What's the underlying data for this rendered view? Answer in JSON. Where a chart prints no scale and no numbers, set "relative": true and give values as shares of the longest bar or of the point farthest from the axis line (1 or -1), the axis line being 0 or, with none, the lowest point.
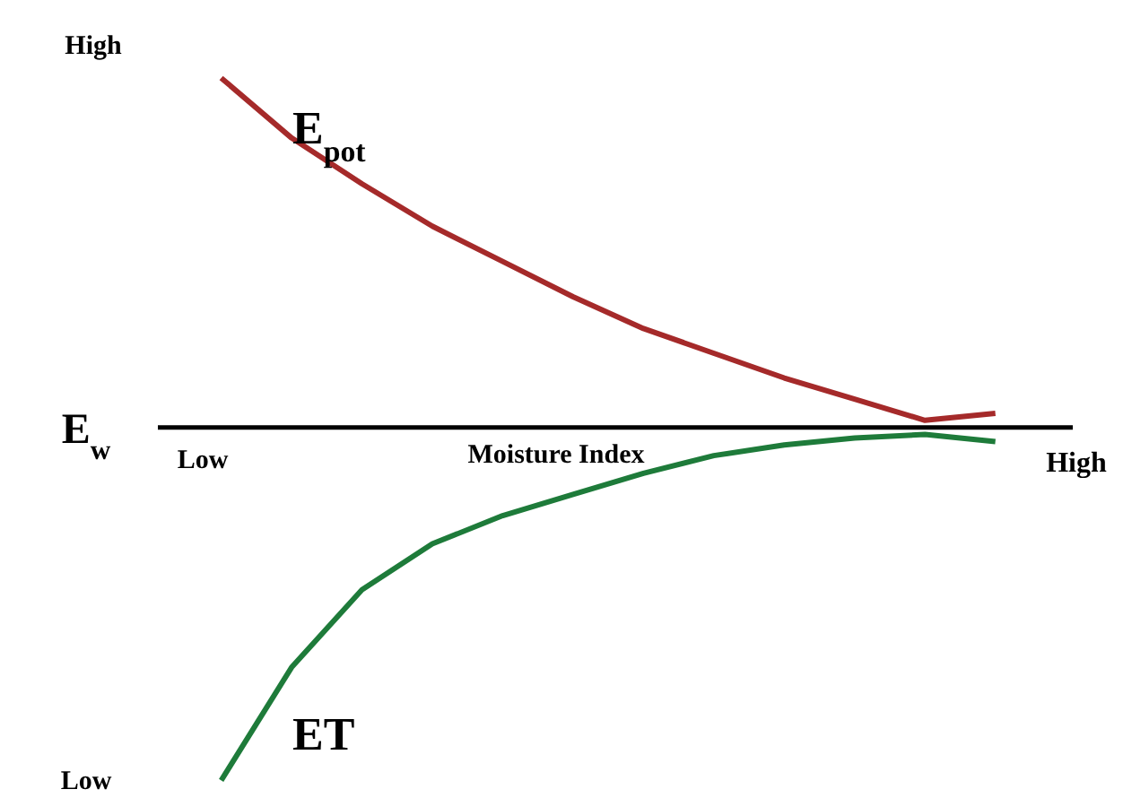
{
  "chart_data": {
    "type": "line",
    "relative": true,
    "xlabel": "Moisture Index",
    "annotations": [
      "High",
      "Low",
      "E$_{w}$",
      "Low",
      "High"
    ],
    "categories": [
      null,
      null,
      null,
      null,
      null,
      null,
      null,
      null,
      null,
      null,
      null,
      null
    ],
    "series": [
      {
        "name": "E$_{pot}$",
        "color": "#a52a2a",
        "values": [
          0.99,
          0.82,
          0.69,
          0.57,
          0.47,
          0.37,
          0.28,
          0.21,
          0.14,
          0.08,
          0.02,
          0.04
        ]
      },
      {
        "name": "ET",
        "color": "#1e7b3a",
        "values": [
          -1,
          -0.68,
          -0.46,
          -0.33,
          -0.25,
          -0.19,
          -0.13,
          -0.08,
          -0.05,
          -0.03,
          -0.02,
          -0.04
        ]
      }
    ]
  }
}
